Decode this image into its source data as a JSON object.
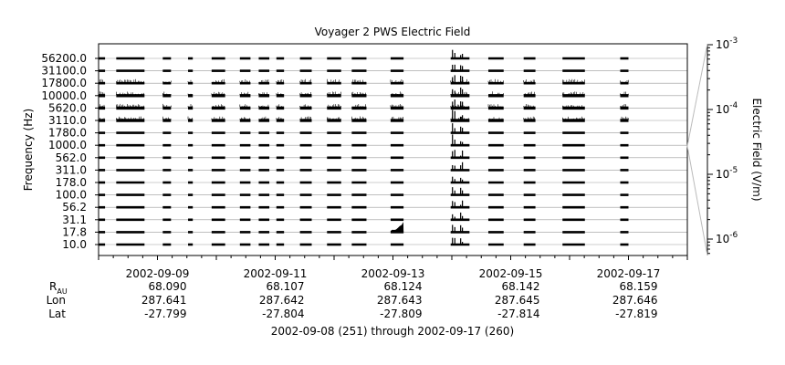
{
  "chart_data": {
    "type": "line",
    "title": "Voyager 2 PWS Electric Field",
    "ylabel": "Frequency (Hz)",
    "colorbar_label": "Electric Field (V/m)",
    "channels": [
      "10.0",
      "17.8",
      "31.1",
      "56.2",
      "100.0",
      "178.0",
      "311.0",
      "562.0",
      "1000.0",
      "1780.0",
      "3110.0",
      "5620.0",
      "10000.0",
      "17800.0",
      "31100.0",
      "56200.0"
    ],
    "colorbar_ticks": [
      {
        "base": "10",
        "exp": "-6",
        "value": 1e-06
      },
      {
        "base": "10",
        "exp": "-5",
        "value": 1e-05
      },
      {
        "base": "10",
        "exp": "-4",
        "value": 0.0001
      },
      {
        "base": "10",
        "exp": "-3",
        "value": 0.001
      }
    ],
    "x_ticks": [
      {
        "date": "2002-09-09",
        "r_au": "68.090",
        "lon": "287.641",
        "lat": "-27.799"
      },
      {
        "date": "2002-09-11",
        "r_au": "68.107",
        "lon": "287.642",
        "lat": "-27.804"
      },
      {
        "date": "2002-09-13",
        "r_au": "68.124",
        "lon": "287.643",
        "lat": "-27.809"
      },
      {
        "date": "2002-09-15",
        "r_au": "68.142",
        "lon": "287.645",
        "lat": "-27.814"
      },
      {
        "date": "2002-09-17",
        "r_au": "68.159",
        "lon": "287.646",
        "lat": "-27.819"
      }
    ],
    "row_labels": {
      "r": "R",
      "r_sub": "AU",
      "lon": "Lon",
      "lat": "Lat"
    },
    "xlabel": "2002-09-08 (251) through 2002-09-17 (260)",
    "segments": [
      [
        0.0,
        0.11
      ],
      [
        0.3,
        0.78
      ],
      [
        1.09,
        1.23
      ],
      [
        1.52,
        1.6
      ],
      [
        1.92,
        2.15
      ],
      [
        2.4,
        2.58
      ],
      [
        2.72,
        2.9
      ],
      [
        3.02,
        3.15
      ],
      [
        3.42,
        3.62
      ],
      [
        3.88,
        4.12
      ],
      [
        4.3,
        4.55
      ],
      [
        4.96,
        5.18
      ],
      [
        5.98,
        6.3
      ],
      [
        6.62,
        6.88
      ],
      [
        7.22,
        7.42
      ],
      [
        7.88,
        8.26
      ],
      [
        8.86,
        9.0
      ]
    ],
    "colors": {
      "trace": "#000000",
      "grid": "#999999",
      "axis": "#000000",
      "colorbar_connector": "#bbbbbb"
    }
  }
}
